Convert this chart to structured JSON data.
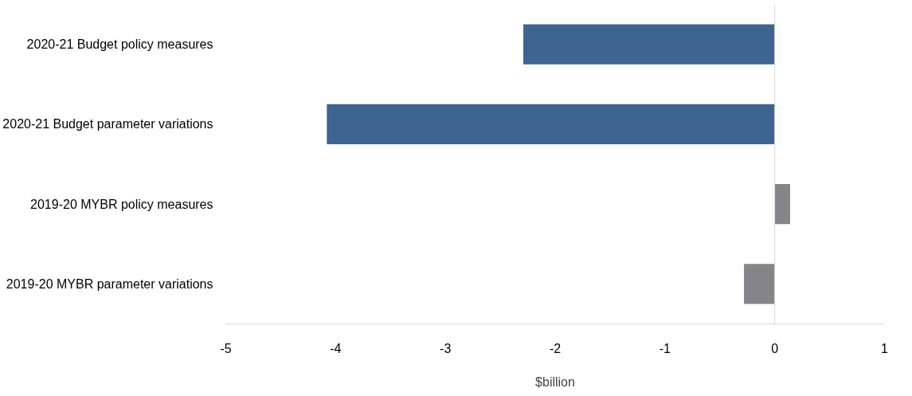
{
  "chart_data": {
    "type": "bar",
    "orientation": "horizontal",
    "xlabel": "$billion",
    "categories": [
      "2020-21 Budget policy measures",
      "2020-21 Budget parameter variations",
      "2019-20 MYBR policy measures",
      "2019-20 MYBR parameter variations"
    ],
    "values": [
      -2.29,
      -4.08,
      0.14,
      -0.28
    ],
    "colors": [
      "#3e6491",
      "#3e6491",
      "#858589",
      "#858589"
    ],
    "xlim": [
      -5,
      1
    ],
    "xticks": [
      -5,
      -4,
      -3,
      -2,
      -1,
      0,
      1
    ]
  }
}
